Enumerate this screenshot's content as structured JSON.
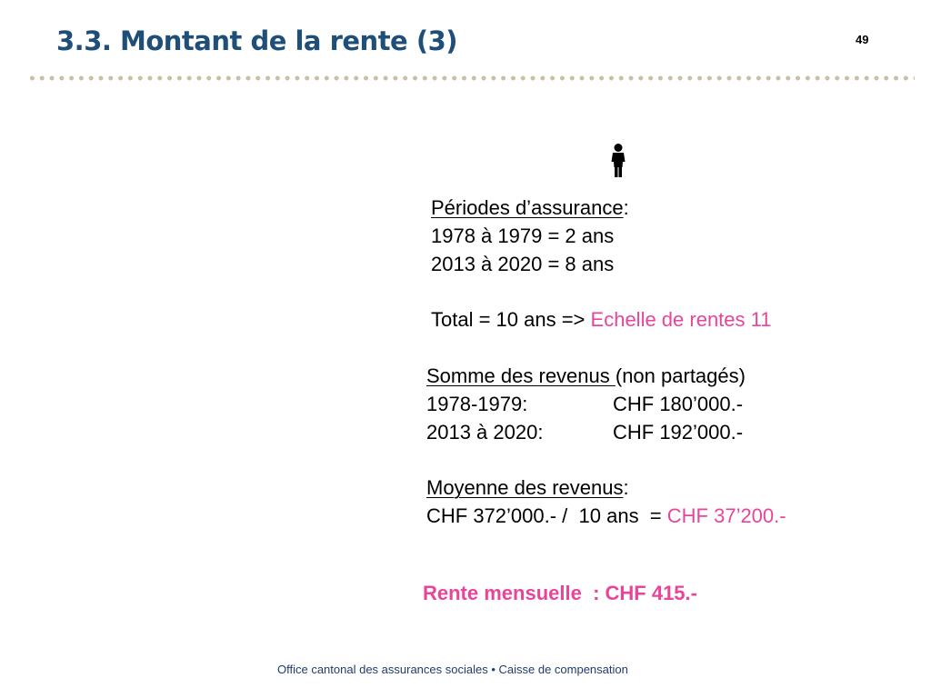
{
  "header": {
    "title": "3.3. Montant de la rente (3)",
    "page_number": "49"
  },
  "icons": {
    "person": "person-icon"
  },
  "periods": {
    "heading": "Périodes d’assurance",
    "heading_suffix": ":",
    "line1": "1978 à 1979 = 2 ans",
    "line2": "2013 à 2020 = 8 ans"
  },
  "total": {
    "prefix": "Total = 10 ans => ",
    "highlight": "Echelle de rentes 11"
  },
  "income_sum": {
    "heading": "Somme des revenus ",
    "heading_suffix": "(non partagés)",
    "rows": [
      {
        "period": "1978-1979:",
        "amount": "CHF 180’000.-"
      },
      {
        "period": "2013 à 2020:",
        "amount": "CHF 192’000.-"
      }
    ]
  },
  "income_avg": {
    "heading": "Moyenne des revenus",
    "heading_suffix": ":",
    "formula": "CHF 372’000.- /  10 ans  = ",
    "result": "CHF 37’200.-"
  },
  "result": {
    "label": "Rente mensuelle  : CHF 415.-"
  },
  "footer": {
    "text": "Office cantonal des assurances sociales • Caisse de compensation"
  },
  "colors": {
    "title": "#1f4e79",
    "highlight": "#e8459a",
    "divider": "#c9bfa4",
    "footer": "#1f3d6b"
  }
}
